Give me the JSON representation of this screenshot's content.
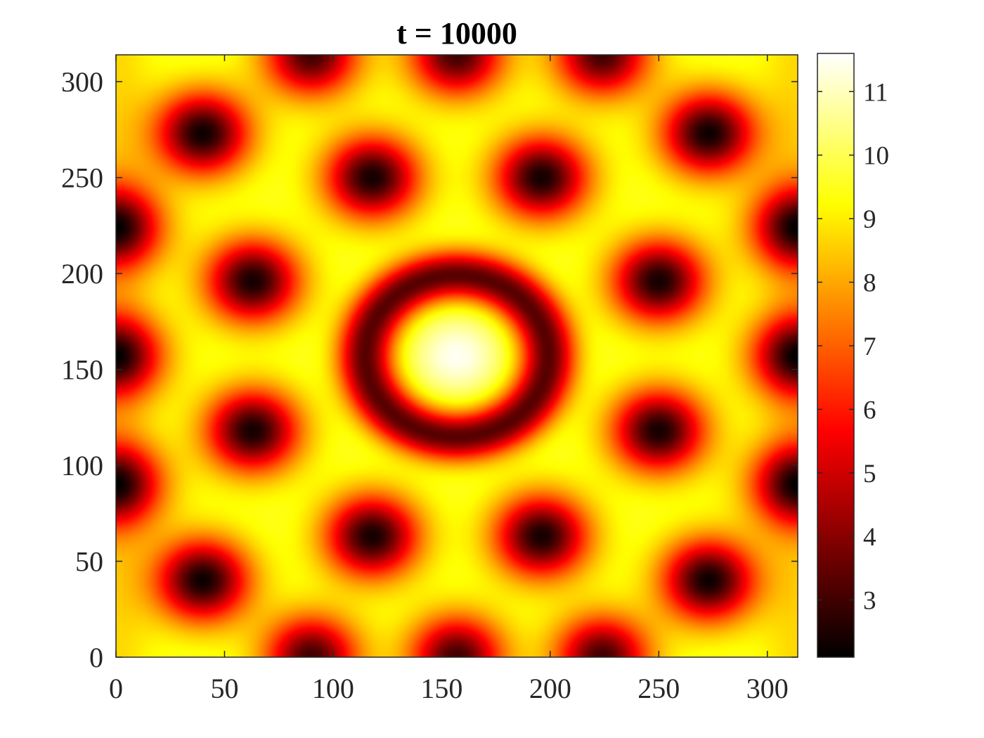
{
  "chart_data": {
    "type": "heatmap",
    "title": "t = 10000",
    "xlabel": "",
    "ylabel": "",
    "xlim": [
      0,
      314
    ],
    "ylim": [
      0,
      314
    ],
    "x_ticks": [
      0,
      50,
      100,
      150,
      200,
      250,
      300
    ],
    "y_ticks": [
      0,
      50,
      100,
      150,
      200,
      250,
      300
    ],
    "x_tick_labels": [
      "0",
      "50",
      "100",
      "150",
      "200",
      "250",
      "300"
    ],
    "y_tick_labels": [
      "0",
      "50",
      "100",
      "150",
      "200",
      "250",
      "300"
    ],
    "colormap": "hot",
    "colorbar": {
      "range": [
        2.1,
        11.6
      ],
      "ticks": [
        3,
        4,
        5,
        6,
        7,
        8,
        9,
        10,
        11
      ],
      "tick_labels": [
        "3",
        "4",
        "5",
        "6",
        "7",
        "8",
        "9",
        "10",
        "11"
      ]
    },
    "base_level": 9.6,
    "central_peak": {
      "x": 157,
      "y": 157,
      "value": 11.5
    },
    "central_ring": {
      "center_x": 157,
      "center_y": 157,
      "radius": 42,
      "value": 3.3
    },
    "minima": [
      {
        "x": 40,
        "y": 40,
        "value": 2.3
      },
      {
        "x": 273,
        "y": 40,
        "value": 2.3
      },
      {
        "x": 40,
        "y": 273,
        "value": 2.3
      },
      {
        "x": 273,
        "y": 273,
        "value": 2.3
      },
      {
        "x": 118,
        "y": 63,
        "value": 2.4
      },
      {
        "x": 196,
        "y": 63,
        "value": 2.4
      },
      {
        "x": 118,
        "y": 250,
        "value": 2.4
      },
      {
        "x": 196,
        "y": 250,
        "value": 2.4
      },
      {
        "x": 63,
        "y": 118,
        "value": 2.4
      },
      {
        "x": 63,
        "y": 196,
        "value": 2.4
      },
      {
        "x": 250,
        "y": 118,
        "value": 2.4
      },
      {
        "x": 250,
        "y": 196,
        "value": 2.4
      },
      {
        "x": 90,
        "y": 0,
        "value": 3.0
      },
      {
        "x": 157,
        "y": 0,
        "value": 3.0
      },
      {
        "x": 224,
        "y": 0,
        "value": 3.0
      },
      {
        "x": 90,
        "y": 314,
        "value": 3.0
      },
      {
        "x": 157,
        "y": 314,
        "value": 3.0
      },
      {
        "x": 224,
        "y": 314,
        "value": 3.0
      },
      {
        "x": 0,
        "y": 90,
        "value": 3.0
      },
      {
        "x": 0,
        "y": 157,
        "value": 3.0
      },
      {
        "x": 0,
        "y": 224,
        "value": 3.0
      },
      {
        "x": 314,
        "y": 90,
        "value": 3.0
      },
      {
        "x": 314,
        "y": 157,
        "value": 3.0
      },
      {
        "x": 314,
        "y": 224,
        "value": 3.0
      }
    ]
  }
}
